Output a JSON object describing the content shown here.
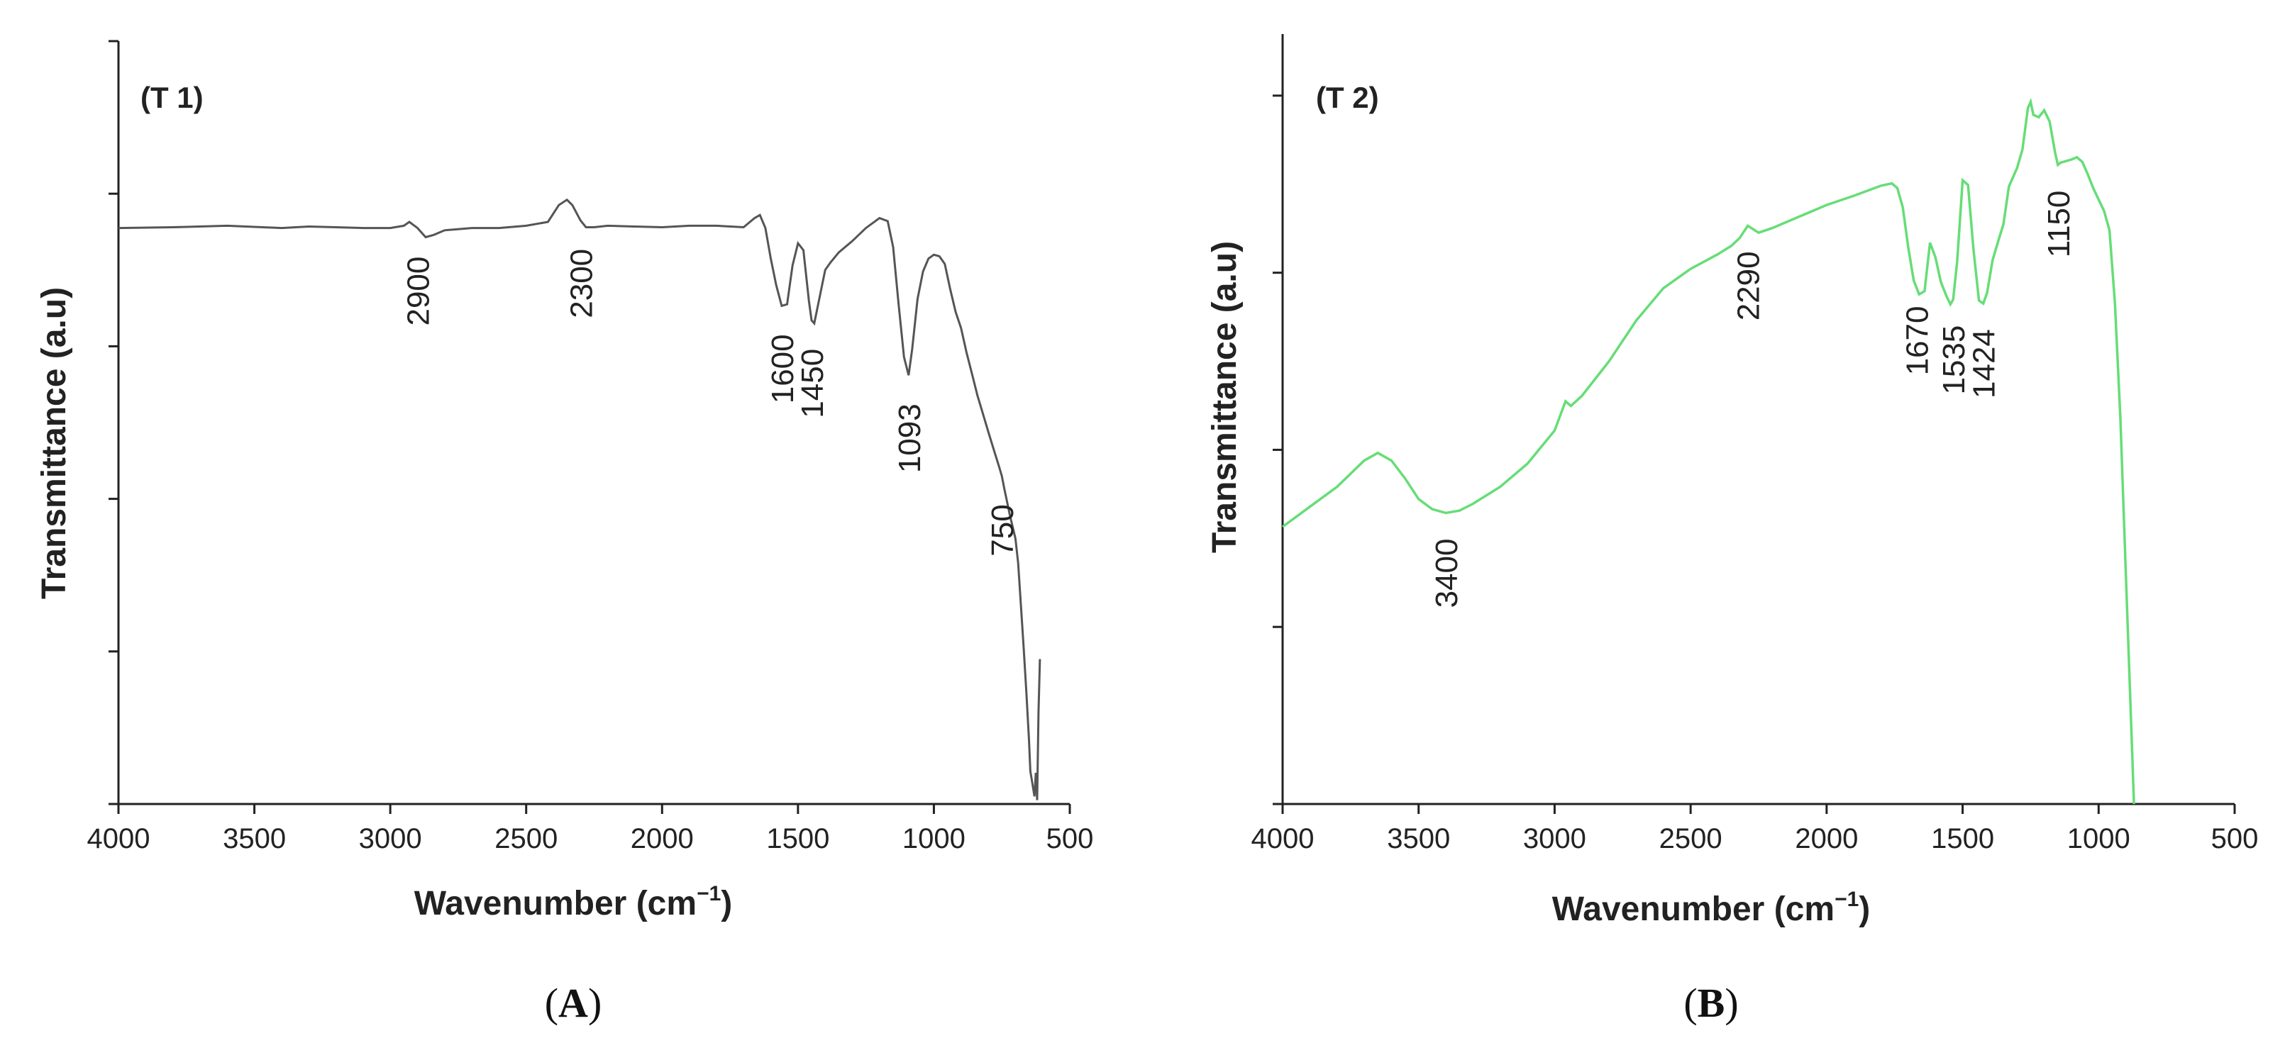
{
  "chart_data": [
    {
      "type": "line",
      "panel_tag": "(T 1)",
      "caption_letter": "A",
      "xlabel": "Wavenumber (cm",
      "xlabel_sup": "−1",
      "xlabel_close": ")",
      "ylabel": "Transmittance (a.u)",
      "xlim": [
        4000,
        500
      ],
      "ylim": [
        0,
        100
      ],
      "x_ticks": [
        4000,
        3500,
        3000,
        2500,
        2000,
        1500,
        1000,
        500
      ],
      "y_ticks": [
        0,
        20,
        40,
        60,
        80,
        100
      ],
      "y_tick_labels": "none",
      "color": "#555555",
      "series": [
        {
          "x": [
            4000,
            3800,
            3600,
            3400,
            3300,
            3200,
            3100,
            3000,
            2950,
            2930,
            2900,
            2870,
            2840,
            2800,
            2700,
            2600,
            2500,
            2420,
            2380,
            2350,
            2330,
            2300,
            2280,
            2250,
            2200,
            2100,
            2000,
            1900,
            1800,
            1700,
            1660,
            1640,
            1620,
            1600,
            1580,
            1560,
            1540,
            1520,
            1500,
            1480,
            1460,
            1450,
            1440,
            1420,
            1400,
            1380,
            1350,
            1300,
            1250,
            1200,
            1170,
            1150,
            1130,
            1110,
            1093,
            1080,
            1060,
            1040,
            1020,
            1000,
            980,
            960,
            940,
            920,
            900,
            880,
            860,
            840,
            820,
            800,
            780,
            760,
            750,
            740,
            720,
            700,
            690,
            680,
            670,
            660,
            650,
            645,
            640,
            635,
            630,
            625,
            620,
            615,
            610
          ],
          "y": [
            75.5,
            75.6,
            75.8,
            75.5,
            75.7,
            75.6,
            75.5,
            75.5,
            75.8,
            76.3,
            75.5,
            74.3,
            74.6,
            75.2,
            75.5,
            75.5,
            75.8,
            76.3,
            78.5,
            79.2,
            78.5,
            76.5,
            75.6,
            75.6,
            75.8,
            75.7,
            75.6,
            75.8,
            75.8,
            75.6,
            76.8,
            77.2,
            75.5,
            71.5,
            68.0,
            65.3,
            65.5,
            70.6,
            73.5,
            72.6,
            66.0,
            63.4,
            63.0,
            66.5,
            70.0,
            71.0,
            72.3,
            73.8,
            75.5,
            76.8,
            76.4,
            73.0,
            65.6,
            58.6,
            56.2,
            59.6,
            66.2,
            69.8,
            71.5,
            72.0,
            71.8,
            70.8,
            67.5,
            64.5,
            62.4,
            59.2,
            56.4,
            53.6,
            51.2,
            48.8,
            46.5,
            44.2,
            43.0,
            41.2,
            37.8,
            34.8,
            31.6,
            26.2,
            20.6,
            14.8,
            8.4,
            4.3,
            3.2,
            2.1,
            1.0,
            4.1,
            0.5,
            12.0,
            19.0
          ]
        }
      ],
      "annotations": [
        {
          "text": "2900",
          "x": 2900
        },
        {
          "text": "2300",
          "x": 2300
        },
        {
          "text": "1600",
          "x": 1560
        },
        {
          "text": "1450",
          "x": 1450
        },
        {
          "text": "1093",
          "x": 1093
        },
        {
          "text": "750",
          "x": 750
        }
      ]
    },
    {
      "type": "line",
      "panel_tag": "(T 2)",
      "caption_letter": "B",
      "xlabel": "Wavenumber (cm",
      "xlabel_sup": "−1",
      "xlabel_close": ")",
      "ylabel": "Transmittance (a.u)",
      "xlim": [
        4000,
        500
      ],
      "ylim": [
        0,
        100
      ],
      "x_ticks": [
        4000,
        3500,
        3000,
        2500,
        2000,
        1500,
        1000,
        500
      ],
      "y_ticks": [
        0,
        23,
        46,
        69,
        92
      ],
      "y_tick_labels": "none",
      "color": "#66dd77",
      "series": [
        {
          "x": [
            4000,
            3900,
            3800,
            3700,
            3650,
            3600,
            3550,
            3500,
            3450,
            3400,
            3350,
            3300,
            3200,
            3100,
            3000,
            2960,
            2940,
            2900,
            2800,
            2700,
            2600,
            2500,
            2400,
            2350,
            2320,
            2290,
            2250,
            2200,
            2100,
            2000,
            1900,
            1800,
            1760,
            1740,
            1720,
            1700,
            1680,
            1660,
            1640,
            1620,
            1600,
            1580,
            1560,
            1545,
            1535,
            1520,
            1500,
            1480,
            1460,
            1440,
            1424,
            1410,
            1390,
            1370,
            1350,
            1330,
            1300,
            1280,
            1260,
            1250,
            1240,
            1220,
            1200,
            1180,
            1160,
            1150,
            1140,
            1120,
            1100,
            1080,
            1060,
            1040,
            1020,
            1000,
            980,
            960,
            940,
            920,
            900,
            880,
            870
          ],
          "y": [
            36.0,
            38.6,
            41.2,
            44.6,
            45.6,
            44.6,
            42.3,
            39.6,
            38.3,
            37.8,
            38.1,
            39.0,
            41.2,
            44.2,
            48.5,
            52.3,
            51.7,
            53.0,
            57.5,
            62.8,
            67.0,
            69.5,
            71.4,
            72.5,
            73.5,
            75.1,
            74.2,
            74.8,
            76.3,
            77.8,
            79.0,
            80.3,
            80.6,
            80.0,
            77.5,
            72.3,
            68.0,
            66.2,
            66.6,
            72.9,
            71.0,
            67.8,
            66.0,
            64.9,
            65.5,
            70.5,
            81.0,
            80.4,
            72.0,
            65.4,
            65.0,
            66.4,
            70.6,
            73.0,
            75.3,
            80.2,
            82.6,
            85.0,
            90.4,
            91.2,
            89.5,
            89.2,
            90.1,
            88.6,
            84.6,
            83.0,
            83.3,
            83.5,
            83.7,
            84.0,
            83.4,
            81.8,
            80.0,
            78.5,
            77.0,
            74.5,
            65.0,
            50.0,
            30.0,
            10.0,
            0.0
          ]
        }
      ],
      "annotations": [
        {
          "text": "3400",
          "x": 3400
        },
        {
          "text": "2290",
          "x": 2290
        },
        {
          "text": "1670",
          "x": 1670
        },
        {
          "text": "1535",
          "x": 1535
        },
        {
          "text": "1424",
          "x": 1424
        },
        {
          "text": "1150",
          "x": 1150
        }
      ]
    }
  ]
}
